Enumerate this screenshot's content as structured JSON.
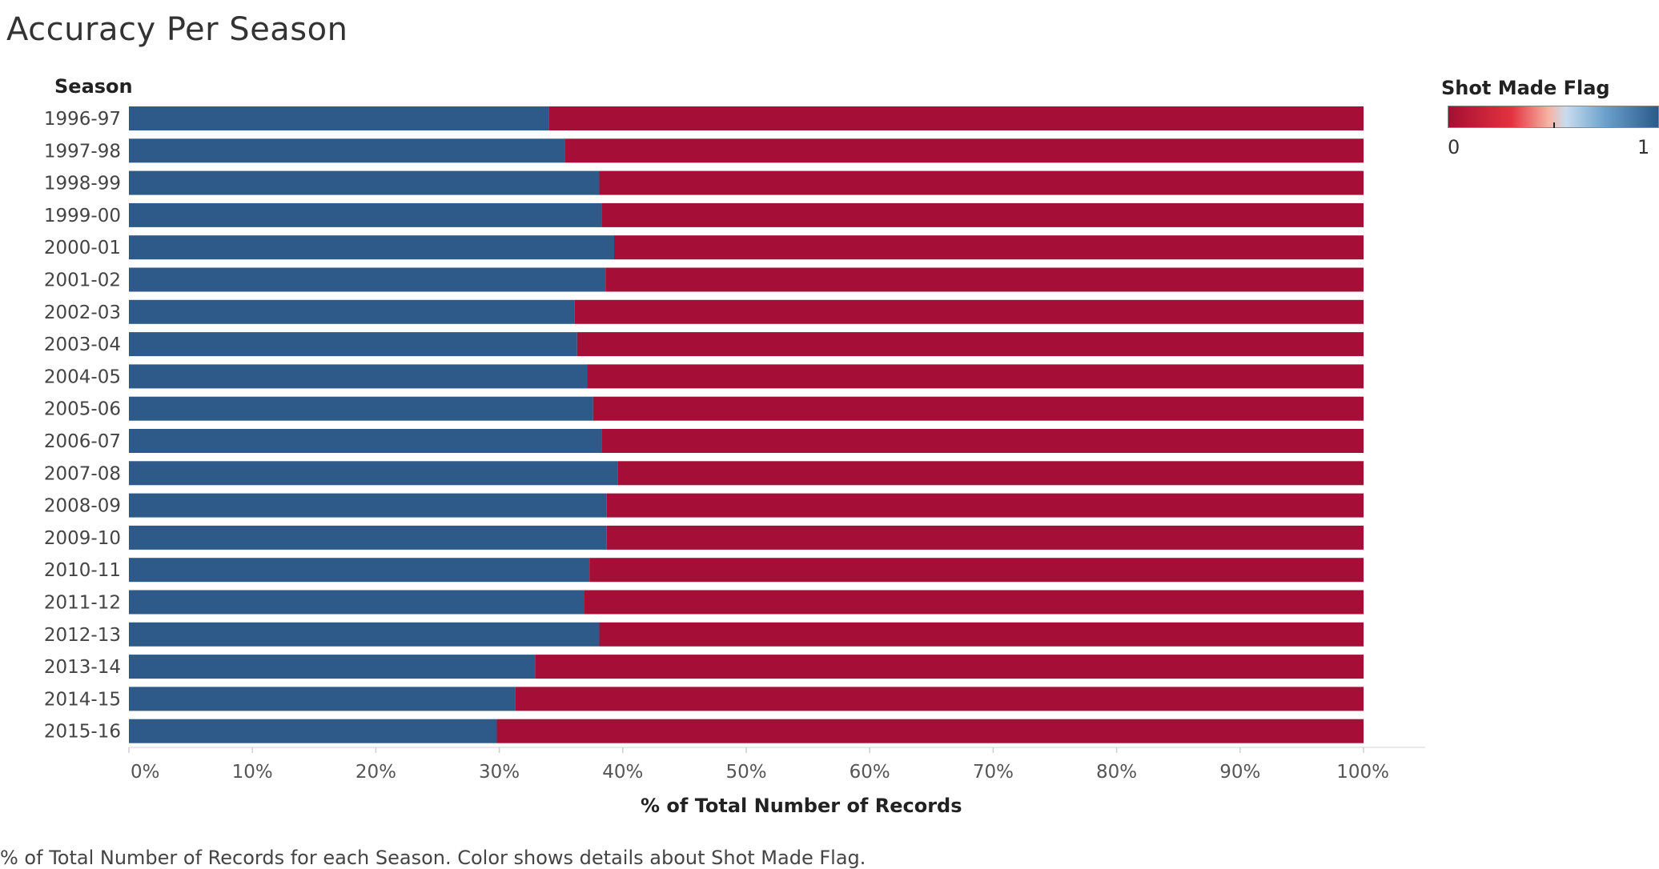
{
  "title": "Accuracy Per Season",
  "caption": "% of Total Number of Records for each Season.  Color shows details about Shot Made Flag.",
  "legend": {
    "title": "Shot Made Flag",
    "min_label": "0",
    "max_label": "1"
  },
  "colors": {
    "made": "#2d5a89",
    "missed": "#a50e36"
  },
  "chart_data": {
    "type": "bar",
    "orientation": "horizontal",
    "stacked": "100%",
    "title": "Accuracy Per Season",
    "ylabel": "Season",
    "xlabel": "% of Total Number of Records",
    "xlim": [
      0,
      100
    ],
    "x_ticks": [
      "0%",
      "10%",
      "20%",
      "30%",
      "40%",
      "50%",
      "60%",
      "70%",
      "80%",
      "90%",
      "100%"
    ],
    "categories": [
      "1996-97",
      "1997-98",
      "1998-99",
      "1999-00",
      "2000-01",
      "2001-02",
      "2002-03",
      "2003-04",
      "2004-05",
      "2005-06",
      "2006-07",
      "2007-08",
      "2008-09",
      "2009-10",
      "2010-11",
      "2011-12",
      "2012-13",
      "2013-14",
      "2014-15",
      "2015-16"
    ],
    "series": [
      {
        "name": "1",
        "values": [
          34.0,
          35.3,
          38.1,
          38.3,
          39.3,
          38.6,
          36.1,
          36.3,
          37.1,
          37.6,
          38.3,
          39.6,
          38.7,
          38.7,
          37.3,
          36.9,
          38.1,
          32.9,
          31.3,
          29.8
        ]
      },
      {
        "name": "0",
        "values": [
          66.0,
          64.7,
          61.9,
          61.7,
          60.7,
          61.4,
          63.9,
          63.7,
          62.9,
          62.4,
          61.7,
          60.4,
          61.3,
          61.3,
          62.7,
          63.1,
          61.9,
          67.1,
          68.7,
          70.2
        ]
      }
    ],
    "legend_position": "top-right",
    "grid": false
  }
}
